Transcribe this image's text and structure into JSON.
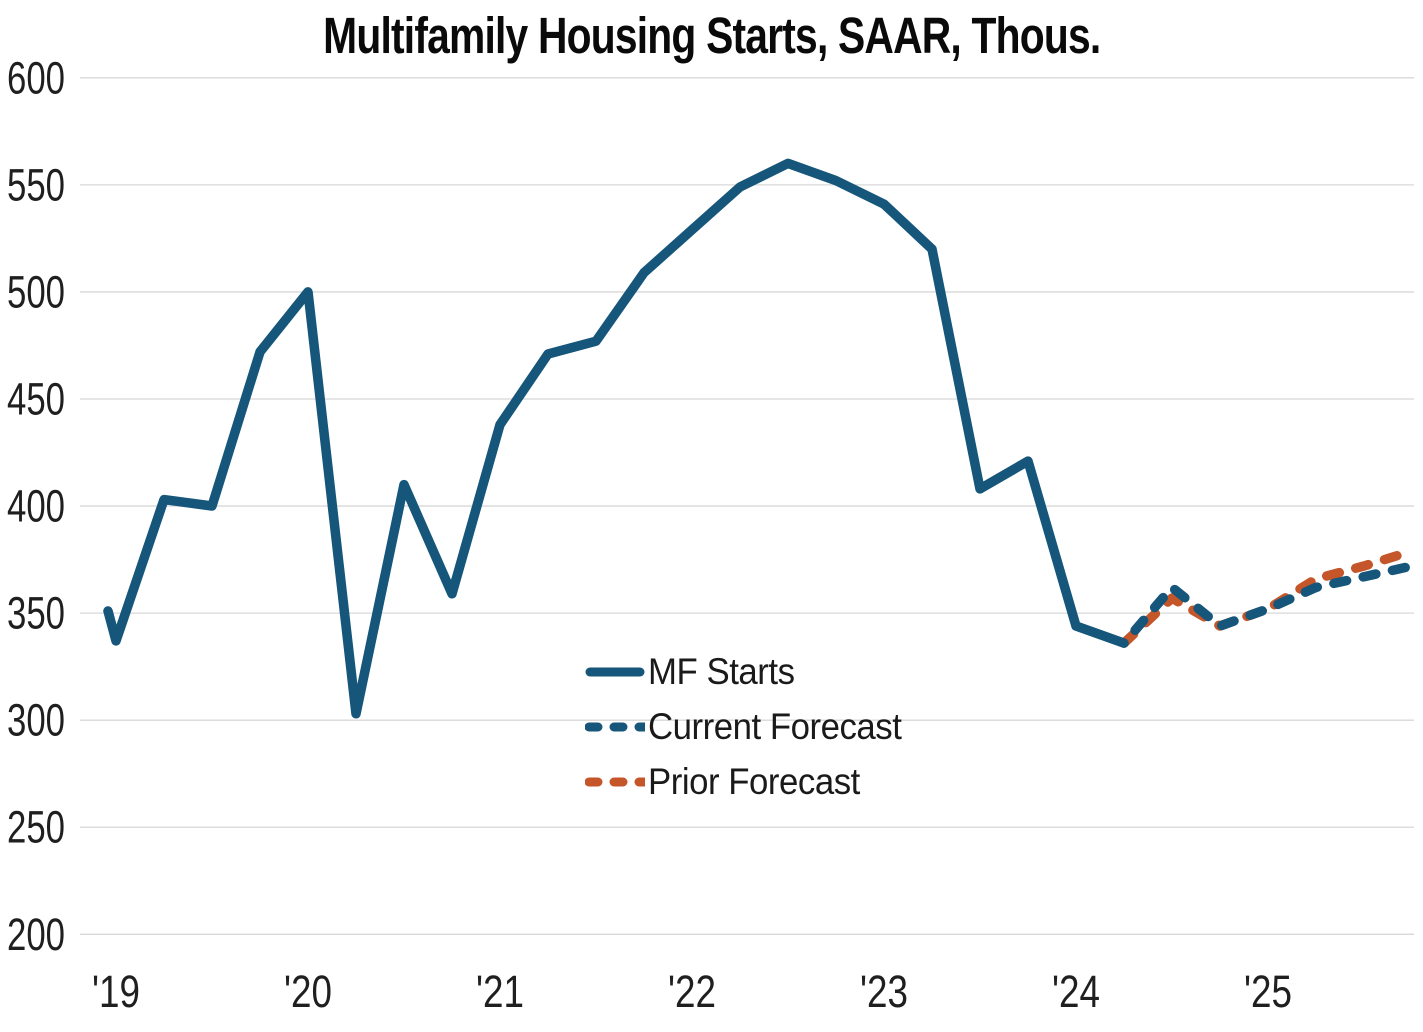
{
  "chart_data": {
    "type": "line",
    "title": "Multifamily Housing Starts, SAAR, Thous.",
    "xlabel": "",
    "ylabel": "",
    "ylim": [
      200,
      600
    ],
    "ytick_step": 50,
    "ytick_labels": [
      "600",
      "550",
      "500",
      "450",
      "400",
      "350",
      "300",
      "250",
      "200"
    ],
    "grid": "horizontal",
    "legend_position": "inside-lower-center",
    "x_axis": {
      "unit": "quarter",
      "start": "2019Q1",
      "tick_labels": [
        {
          "label": "'19",
          "q": 0
        },
        {
          "label": "'20",
          "q": 4
        },
        {
          "label": "'21",
          "q": 8
        },
        {
          "label": "'22",
          "q": 12
        },
        {
          "label": "'23",
          "q": 16
        },
        {
          "label": "'24",
          "q": 20
        },
        {
          "label": "'25",
          "q": 24
        }
      ]
    },
    "series": [
      {
        "name": "MF Starts",
        "style": "solid",
        "color": "#16567A",
        "start_q": 0,
        "start_period": "2019Q1",
        "lead_in_value": 351,
        "values": [
          337,
          403,
          400,
          472,
          500,
          303,
          410,
          359,
          438,
          471,
          477,
          509,
          529,
          549,
          560,
          552,
          541,
          520,
          408,
          421,
          344,
          336
        ]
      },
      {
        "name": "Current Forecast",
        "style": "dashed",
        "color": "#16567A",
        "start_q": 21,
        "start_period": "2024Q2",
        "values": [
          336,
          362,
          344,
          352,
          362,
          367,
          372
        ]
      },
      {
        "name": "Prior Forecast",
        "style": "dashed",
        "color": "#C5562A",
        "start_q": 21,
        "start_period": "2024Q2",
        "values": [
          336,
          357,
          344,
          352,
          366,
          372,
          379
        ]
      }
    ]
  },
  "colors": {
    "grid": "#D8D8D8",
    "axis_text": "#1f1f1f",
    "title": "#0a0a0a",
    "background": "#FFFFFF"
  }
}
